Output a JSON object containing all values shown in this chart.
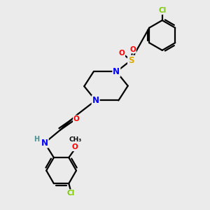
{
  "bg_color": "#ebebeb",
  "atom_colors": {
    "C": "#000000",
    "N": "#0000ff",
    "O": "#ff0000",
    "Cl": "#7ccc00",
    "S": "#ddaa00",
    "H": "#4a9090"
  },
  "bond_color": "#000000",
  "bond_width": 1.6,
  "font_size_atom": 8.5,
  "font_size_small": 7.5,
  "font_size_tiny": 6.5
}
